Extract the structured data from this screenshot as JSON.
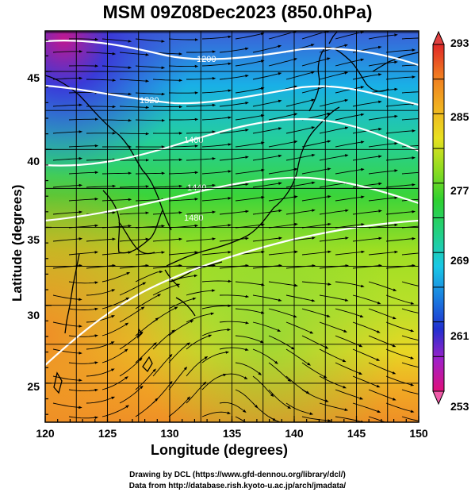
{
  "title": "MSM 09Z08Dec2023 (850.0hPa)",
  "x_axis": {
    "label": "Longitude (degrees)",
    "ticks": [
      "120",
      "125",
      "130",
      "135",
      "140",
      "145",
      "150"
    ],
    "range": [
      120,
      150
    ]
  },
  "y_axis": {
    "label": "Latitude  (degrees)",
    "ticks": [
      "25",
      "30",
      "35",
      "40",
      "45"
    ],
    "range": [
      22.5,
      47.6
    ]
  },
  "colorbar": {
    "labels": [
      "293",
      "285",
      "277",
      "269",
      "261",
      "253"
    ],
    "range": [
      253,
      293
    ],
    "colors": [
      "#e0107a",
      "#a020c8",
      "#2030d0",
      "#1a7fe0",
      "#19c8e6",
      "#22d08a",
      "#2ed030",
      "#8fdc20",
      "#e8e020",
      "#f0b020",
      "#f07a20",
      "#e02828"
    ]
  },
  "contour_labels": [
    "1200",
    "1320",
    "1400",
    "1440",
    "1480"
  ],
  "map_layers": [
    "temperature-shading",
    "streamlines",
    "geopotential-contours",
    "coastlines",
    "grid"
  ],
  "credits": [
    "Drawing by DCL (https://www.gfd-dennou.org/library/dcl/)",
    "Data from http://database.rish.kyoto-u.ac.jp/arch/jmadata/"
  ]
}
